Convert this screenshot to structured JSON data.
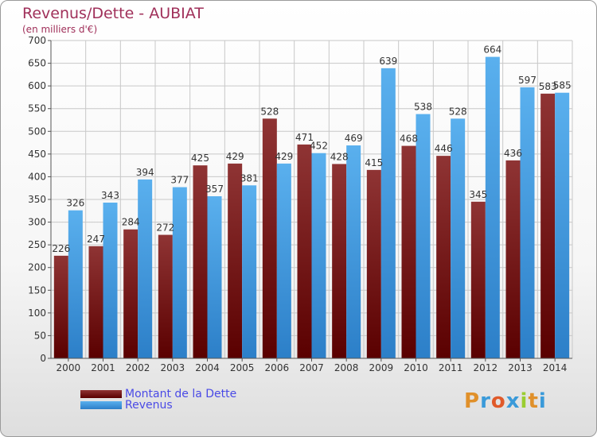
{
  "chart_data": {
    "type": "bar",
    "title": "Revenus/Dette - AUBIAT",
    "subtitle": "(en milliers d'€)",
    "categories": [
      "2000",
      "2001",
      "2002",
      "2003",
      "2004",
      "2005",
      "2006",
      "2007",
      "2008",
      "2009",
      "2010",
      "2011",
      "2012",
      "2013",
      "2014"
    ],
    "series": [
      {
        "name": "Montant de la Dette",
        "color": "#7a1c1c",
        "values": [
          226,
          247,
          284,
          272,
          425,
          429,
          528,
          471,
          428,
          415,
          468,
          446,
          345,
          436,
          583
        ]
      },
      {
        "name": "Revenus",
        "color": "#4aa3e6",
        "values": [
          326,
          343,
          394,
          377,
          357,
          381,
          429,
          452,
          469,
          639,
          538,
          528,
          664,
          597,
          585
        ]
      }
    ],
    "ylim": [
      0,
      700
    ],
    "yticks": [
      0,
      50,
      100,
      150,
      200,
      250,
      300,
      350,
      400,
      450,
      500,
      550,
      600,
      650,
      700
    ],
    "grid": true,
    "legend_position": "bottom-left"
  },
  "logo": {
    "text": "Proxiti"
  }
}
